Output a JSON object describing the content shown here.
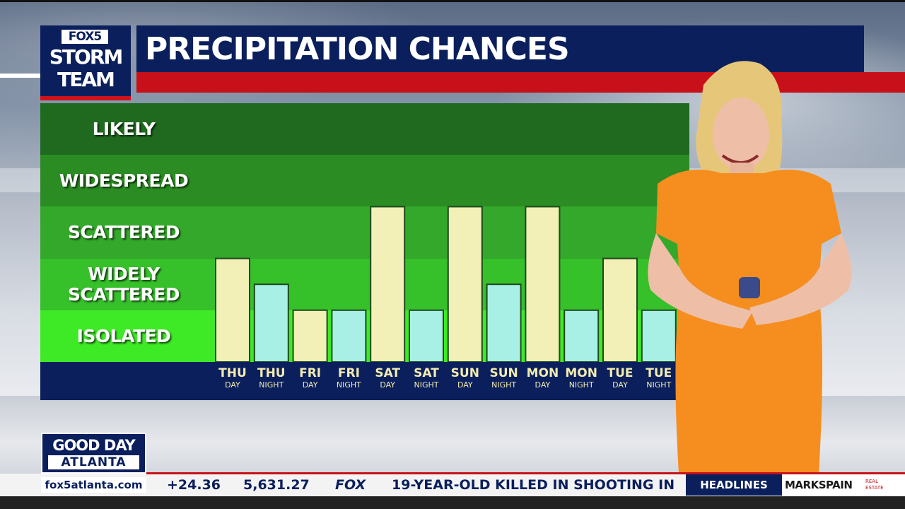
{
  "branding": {
    "fox5_label": "FOX5",
    "storm_line1": "STORM",
    "storm_line2": "TEAM",
    "show_line1": "GOOD DAY",
    "show_line2": "ATLANTA",
    "website": "fox5atlanta.com"
  },
  "header": {
    "title": "PRECIPITATION CHANCES"
  },
  "chart_data": {
    "type": "bar",
    "title": "PRECIPITATION CHANCES",
    "levels": [
      "ISOLATED",
      "WIDELY SCATTERED",
      "SCATTERED",
      "WIDESPREAD",
      "LIKELY"
    ],
    "level_labels": [
      "ISOLATED",
      "WIDELY\nSCATTERED",
      "SCATTERED",
      "WIDESPREAD",
      "LIKELY"
    ],
    "categories": [
      {
        "day": "THU",
        "period": "DAY"
      },
      {
        "day": "THU",
        "period": "NIGHT"
      },
      {
        "day": "FRI",
        "period": "DAY"
      },
      {
        "day": "FRI",
        "period": "NIGHT"
      },
      {
        "day": "SAT",
        "period": "DAY"
      },
      {
        "day": "SAT",
        "period": "NIGHT"
      },
      {
        "day": "SUN",
        "period": "DAY"
      },
      {
        "day": "SUN",
        "period": "NIGHT"
      },
      {
        "day": "MON",
        "period": "DAY"
      },
      {
        "day": "MON",
        "period": "NIGHT"
      },
      {
        "day": "TUE",
        "period": "DAY"
      },
      {
        "day": "TUE",
        "period": "NIGHT"
      }
    ],
    "values": [
      2,
      1.5,
      1,
      1,
      3,
      1,
      3,
      1.5,
      3,
      1,
      2,
      1
    ],
    "ylim": [
      0,
      5
    ],
    "grid": false,
    "colors": {
      "day_bar": "#f2f0b6",
      "night_bar": "#a8efe6",
      "bar_edge": "#1d4a1d",
      "band_likely": "#1f6a1f",
      "band_widespread": "#2a8c22",
      "band_scattered": "#33a82a",
      "band_widely_scattered": "#36c02a",
      "band_isolated": "#3eea26"
    }
  },
  "ticker": {
    "number1": "+24.36",
    "number2": "5,631.27",
    "network": "FOX",
    "headline": "19-YEAR-OLD KILLED IN SHOOTING IN",
    "section": "HEADLINES",
    "sponsor": "MARKSPAIN",
    "sponsor_sub": "REAL ESTATE"
  }
}
